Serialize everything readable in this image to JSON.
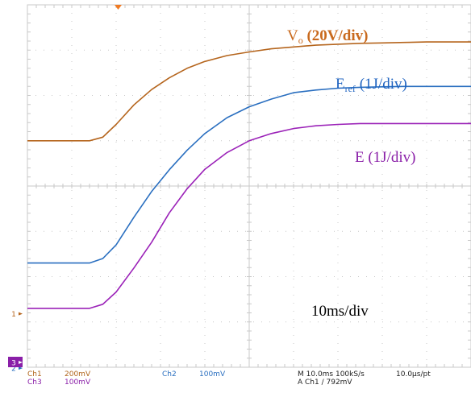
{
  "chart_data": {
    "type": "line",
    "title": "",
    "x_unit": "ms",
    "x_range": [
      0,
      100
    ],
    "y_range": [
      -4,
      4
    ],
    "grid": true,
    "series": [
      {
        "name": "V_o (20V/div)",
        "color": "#b5651d",
        "points": [
          [
            0,
            1.0
          ],
          [
            14,
            1.0
          ],
          [
            17,
            1.08
          ],
          [
            20,
            1.36
          ],
          [
            24,
            1.79
          ],
          [
            28,
            2.13
          ],
          [
            32,
            2.39
          ],
          [
            36,
            2.6
          ],
          [
            40,
            2.75
          ],
          [
            45,
            2.88
          ],
          [
            50,
            2.96
          ],
          [
            55,
            3.03
          ],
          [
            60,
            3.07
          ],
          [
            65,
            3.11
          ],
          [
            70,
            3.13
          ],
          [
            75,
            3.15
          ],
          [
            80,
            3.16
          ],
          [
            85,
            3.17
          ],
          [
            90,
            3.18
          ],
          [
            95,
            3.18
          ],
          [
            100,
            3.18
          ]
        ]
      },
      {
        "name": "E_ref (1J/div)",
        "color": "#2a6fc0",
        "points": [
          [
            0,
            -1.7
          ],
          [
            14,
            -1.7
          ],
          [
            17,
            -1.6
          ],
          [
            20,
            -1.3
          ],
          [
            24,
            -0.69
          ],
          [
            28,
            -0.12
          ],
          [
            32,
            0.36
          ],
          [
            36,
            0.79
          ],
          [
            40,
            1.16
          ],
          [
            45,
            1.51
          ],
          [
            50,
            1.75
          ],
          [
            55,
            1.92
          ],
          [
            60,
            2.06
          ],
          [
            65,
            2.12
          ],
          [
            70,
            2.16
          ],
          [
            75,
            2.18
          ],
          [
            80,
            2.19
          ],
          [
            85,
            2.2
          ],
          [
            90,
            2.2
          ],
          [
            95,
            2.2
          ],
          [
            100,
            2.2
          ]
        ]
      },
      {
        "name": "E (1J/div)",
        "color": "#9b22b8",
        "points": [
          [
            0,
            -2.7
          ],
          [
            14,
            -2.7
          ],
          [
            17,
            -2.61
          ],
          [
            20,
            -2.34
          ],
          [
            24,
            -1.81
          ],
          [
            28,
            -1.24
          ],
          [
            32,
            -0.59
          ],
          [
            36,
            -0.06
          ],
          [
            40,
            0.37
          ],
          [
            45,
            0.74
          ],
          [
            50,
            1.0
          ],
          [
            55,
            1.16
          ],
          [
            60,
            1.27
          ],
          [
            65,
            1.33
          ],
          [
            70,
            1.36
          ],
          [
            75,
            1.38
          ],
          [
            80,
            1.38
          ],
          [
            85,
            1.38
          ],
          [
            90,
            1.38
          ],
          [
            95,
            1.38
          ],
          [
            100,
            1.38
          ]
        ]
      }
    ],
    "annotations": {
      "vo_label_main": "V",
      "vo_label_sub": "o",
      "vo_label_rest": "(20V/div)",
      "eref_label_main": "E",
      "eref_label_sub": "ref",
      "eref_label_rest": "(1J/div)",
      "e_label": "E (1J/div)",
      "timebase": "10ms/div"
    },
    "markers": [
      "1",
      "2",
      "3"
    ]
  },
  "status_bar": {
    "ch1_label": "Ch1",
    "ch1_scale": "200mV",
    "ch3_label": "Ch3",
    "ch3_scale": "100mV",
    "ch2_label": "Ch2",
    "ch2_scale": "100mV",
    "timebase": "M 10.0ms 100kS/s",
    "sample": "10.0µs/pt",
    "trigger": "A  Ch1  ∕  792mV"
  }
}
